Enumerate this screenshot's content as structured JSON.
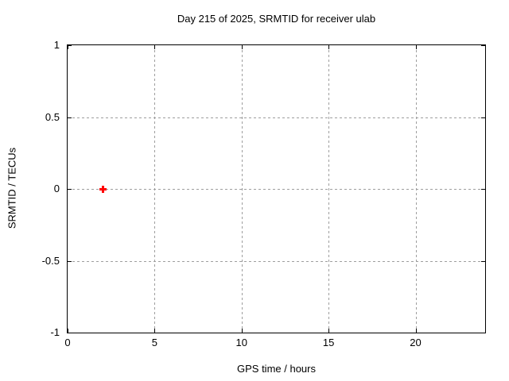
{
  "chart_data": {
    "type": "scatter",
    "title": "Day 215 of 2025, SRMTID for receiver ulab",
    "xlabel": "GPS time / hours",
    "ylabel": "SRMTID / TECUs",
    "xlim": [
      0,
      24
    ],
    "ylim": [
      -1,
      1
    ],
    "x_ticks": [
      0,
      5,
      10,
      15,
      20
    ],
    "x_tick_labels": [
      "0",
      "5",
      "10",
      "15",
      "20"
    ],
    "y_ticks": [
      -1,
      -0.5,
      0,
      0.5,
      1
    ],
    "y_tick_labels": [
      "-1",
      "-0.5",
      "0",
      "0.5",
      "1"
    ],
    "grid": true,
    "legend": "none",
    "series": [
      {
        "name": "SRMTID",
        "marker": "plus",
        "color": "#ff0000",
        "points": [
          {
            "x": 2,
            "y": 0
          }
        ]
      }
    ]
  },
  "colors": {
    "background": "#ffffff",
    "border": "#000000",
    "grid": "#9e9e9e",
    "text": "#000000",
    "marker": "#ff0000"
  }
}
